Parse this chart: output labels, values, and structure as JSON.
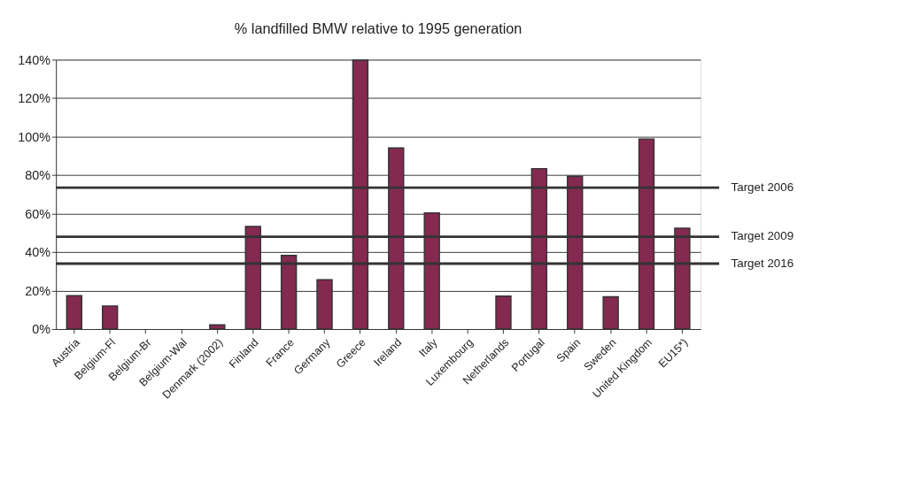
{
  "chart_data": {
    "type": "bar",
    "title": "% landfilled BMW relative to 1995 generation",
    "categories": [
      "Austria",
      "Belgium-Fl",
      "Belgium-Br",
      "Belgium-Wal",
      "Denmark (2002)",
      "Finland",
      "France",
      "Germany",
      "Greece",
      "Ireland",
      "Italy",
      "Luxembourg",
      "Netherlands",
      "Portugal",
      "Spain",
      "Sweden",
      "United Kingdom",
      "EU15*)"
    ],
    "values": [
      17.4,
      12,
      0,
      0,
      2.2,
      53.3,
      38.3,
      25.6,
      139.8,
      94.1,
      60.4,
      0,
      17.1,
      83.4,
      79.4,
      16.8,
      98.8,
      52.4
    ],
    "color": "#84294f",
    "ylim": [
      0,
      140
    ],
    "yticks": [
      {
        "value": 0,
        "label": "0%"
      },
      {
        "value": 20,
        "label": "20%"
      },
      {
        "value": 40,
        "label": "40%"
      },
      {
        "value": 60,
        "label": "60%"
      },
      {
        "value": 80,
        "label": "80%"
      },
      {
        "value": 100,
        "label": "100%"
      },
      {
        "value": 120,
        "label": "120%"
      },
      {
        "value": 140,
        "label": "140%"
      }
    ],
    "grid": "y",
    "ref_lines": [
      {
        "axis": "y",
        "value": 73.5,
        "label": "Target 2006",
        "color": "#333333"
      },
      {
        "axis": "y",
        "value": 48,
        "label": "Target 2009",
        "color": "#333333"
      },
      {
        "axis": "y",
        "value": 34,
        "label": "Target 2016",
        "color": "#333333"
      }
    ]
  }
}
